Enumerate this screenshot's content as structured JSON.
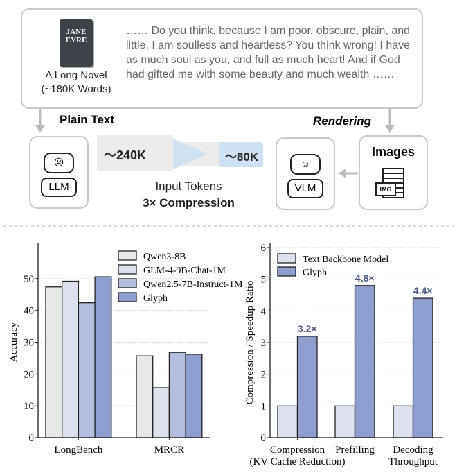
{
  "diagram": {
    "book_title_lines": [
      "JANE",
      "EYRE"
    ],
    "book_caption": [
      "A Long Novel",
      "(~180K Words)"
    ],
    "quote": "…… Do you think, because I am poor, obscure, plain, and little, I am soulless and heartless? You think wrong! I have as much soul as you, and full as much heart! And if God had gifted me with some beauty and much wealth ……",
    "plain_text_label": "Plain Text",
    "rendering_label": "Rendering",
    "llm_label": "LLM",
    "vlm_label": "VLM",
    "images_label": "Images",
    "img_label": "IMG",
    "tokens_before": "～240K",
    "tokens_after": "～80K",
    "input_tokens_label": "Input Tokens",
    "compression_label": "3× Compression"
  },
  "chart_data": [
    {
      "type": "bar",
      "ylabel": "Accuracy",
      "ylim": [
        0,
        60
      ],
      "yticks": [
        0,
        10,
        20,
        30,
        40,
        50
      ],
      "grid": true,
      "legend": "top-right",
      "categories": [
        "LongBench",
        "MRCR"
      ],
      "series": [
        {
          "name": "Qwen3-8B",
          "values": [
            47.4,
            25.7
          ],
          "color": "#e8e8e8"
        },
        {
          "name": "GLM-4-9B-Chat-1M",
          "values": [
            49.2,
            15.7
          ],
          "color": "#dde1ef"
        },
        {
          "name": "Qwen2.5-7B-Instruct-1M",
          "values": [
            42.4,
            26.8
          ],
          "color": "#b4bfdf"
        },
        {
          "name": "Glyph",
          "values": [
            50.6,
            26.2
          ],
          "color": "#8e9fcf"
        }
      ]
    },
    {
      "type": "bar",
      "ylabel": "Compression / Speedup Ratio",
      "ylim": [
        0,
        6
      ],
      "yticks": [
        0,
        1,
        2,
        3,
        4,
        5,
        6
      ],
      "grid": true,
      "legend": "top-left",
      "categories": [
        [
          "Compression",
          "(KV Cache Reduction)"
        ],
        [
          "Prefilling"
        ],
        [
          "Decoding",
          "Throughput"
        ]
      ],
      "series": [
        {
          "name": "Text Backbone Model",
          "values": [
            1,
            1,
            1
          ],
          "color": "#dde1ef"
        },
        {
          "name": "Glyph",
          "values": [
            3.2,
            4.8,
            4.4
          ],
          "color": "#8e9fcf",
          "labels": [
            "3.2×",
            "4.8×",
            "4.4×"
          ]
        }
      ]
    }
  ]
}
